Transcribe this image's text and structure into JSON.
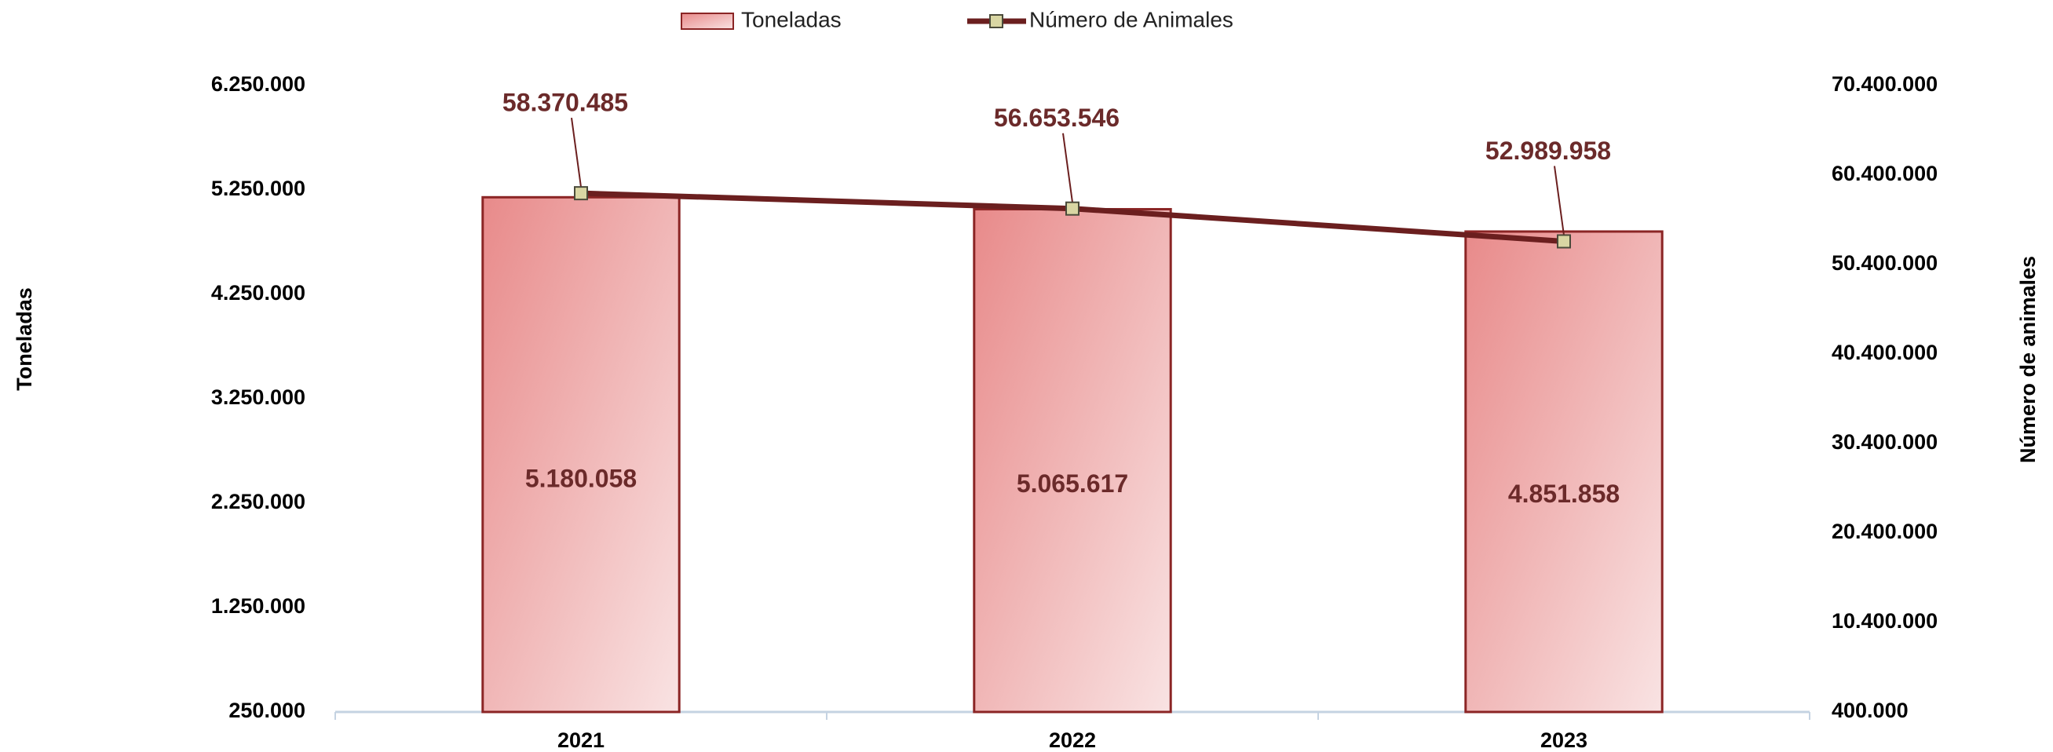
{
  "chart_data": {
    "type": "bar",
    "categories": [
      "2021",
      "2022",
      "2023"
    ],
    "series": [
      {
        "name": "Toneladas",
        "type": "bar",
        "color": "#e88f8f",
        "values": [
          5180058,
          5065617,
          4851858
        ],
        "value_labels": [
          "5.180.058",
          "5.065.617",
          "4.851.858"
        ]
      },
      {
        "name": "Número de Animales",
        "type": "line",
        "axis": "y2",
        "color": "#6b1f1f",
        "values": [
          58370485,
          56653546,
          52989958
        ],
        "value_labels": [
          "58.370.485",
          "56.653.546",
          "52.989.958"
        ]
      }
    ],
    "y_label": "Toneladas",
    "y2_label": "Número de animales",
    "ylim": [
      250000,
      6250000
    ],
    "yticks": [
      {
        "value": 250000,
        "label": "250.000"
      },
      {
        "value": 1250000,
        "label": "1.250.000"
      },
      {
        "value": 2250000,
        "label": "2.250.000"
      },
      {
        "value": 3250000,
        "label": "3.250.000"
      },
      {
        "value": 4250000,
        "label": "4.250.000"
      },
      {
        "value": 5250000,
        "label": "5.250.000"
      },
      {
        "value": 6250000,
        "label": "6.250.000"
      }
    ],
    "y2lim": [
      400000,
      70400000
    ],
    "y2ticks": [
      {
        "value": 400000,
        "label": "400.000"
      },
      {
        "value": 10400000,
        "label": "10.400.000"
      },
      {
        "value": 20400000,
        "label": "20.400.000"
      },
      {
        "value": 30400000,
        "label": "30.400.000"
      },
      {
        "value": 40400000,
        "label": "40.400.000"
      },
      {
        "value": 50400000,
        "label": "50.400.000"
      },
      {
        "value": 60400000,
        "label": "60.400.000"
      },
      {
        "value": 70400000,
        "label": "70.400.000"
      }
    ],
    "grid": false,
    "legend": "top"
  }
}
